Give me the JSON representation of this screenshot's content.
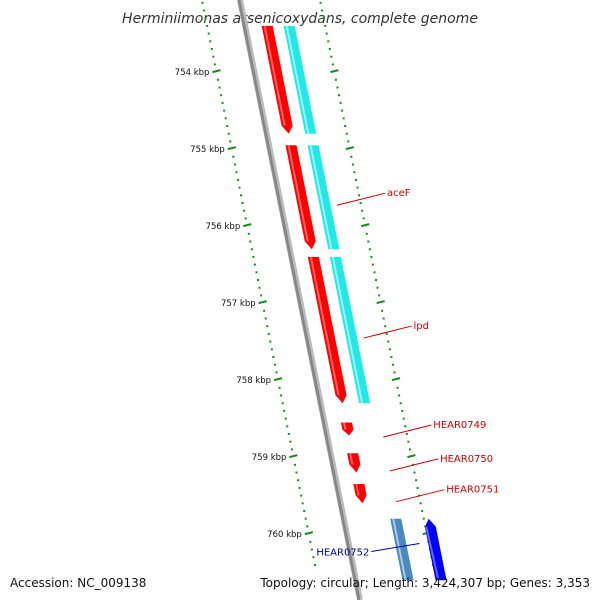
{
  "title": "Herminiimonas arsenicoxydans, complete genome",
  "footer": {
    "accession": "Accession: NC_009138",
    "topology": "Topology: circular; Length: 3,424,307 bp; Genes: 3,353"
  },
  "ticks": [
    {
      "label": "754 kbp",
      "pos_kbp": 754
    },
    {
      "label": "755 kbp",
      "pos_kbp": 755
    },
    {
      "label": "756 kbp",
      "pos_kbp": 756
    },
    {
      "label": "757 kbp",
      "pos_kbp": 757
    },
    {
      "label": "758 kbp",
      "pos_kbp": 758
    },
    {
      "label": "759 kbp",
      "pos_kbp": 759
    },
    {
      "label": "760 kbp",
      "pos_kbp": 760
    }
  ],
  "genes": [
    {
      "label": "",
      "strand": "+",
      "start_kbp": 753.4,
      "end_kbp": 754.8
    },
    {
      "label": "aceF",
      "strand": "+",
      "start_kbp": 754.95,
      "end_kbp": 756.3
    },
    {
      "label": "lpd",
      "strand": "+",
      "start_kbp": 756.4,
      "end_kbp": 758.3
    },
    {
      "label": "HEAR0749",
      "strand": "+",
      "start_kbp": 758.55,
      "end_kbp": 758.72
    },
    {
      "label": "HEAR0750",
      "strand": "+",
      "start_kbp": 758.95,
      "end_kbp": 759.2
    },
    {
      "label": "HEAR0751",
      "strand": "+",
      "start_kbp": 759.35,
      "end_kbp": 759.6
    },
    {
      "label": "HEAR0752",
      "strand": "-",
      "start_kbp": 759.8,
      "end_kbp": 760.6
    }
  ],
  "cds_tracks": [
    {
      "strand": "+",
      "start_kbp": 753.4,
      "end_kbp": 754.8
    },
    {
      "strand": "+",
      "start_kbp": 754.95,
      "end_kbp": 756.3
    },
    {
      "strand": "+",
      "start_kbp": 756.4,
      "end_kbp": 758.3
    },
    {
      "strand": "-",
      "start_kbp": 759.8,
      "end_kbp": 760.6
    }
  ],
  "colors": {
    "gene_plus": "#ff0000",
    "gene_minus": "#0000ff",
    "cds": "#22e8e8",
    "cds_minus": "#4a88c0",
    "backbone": "#888888",
    "ticks": "#1a8c1a",
    "plus_label": "#cc0000",
    "minus_label": "#0000aa"
  }
}
